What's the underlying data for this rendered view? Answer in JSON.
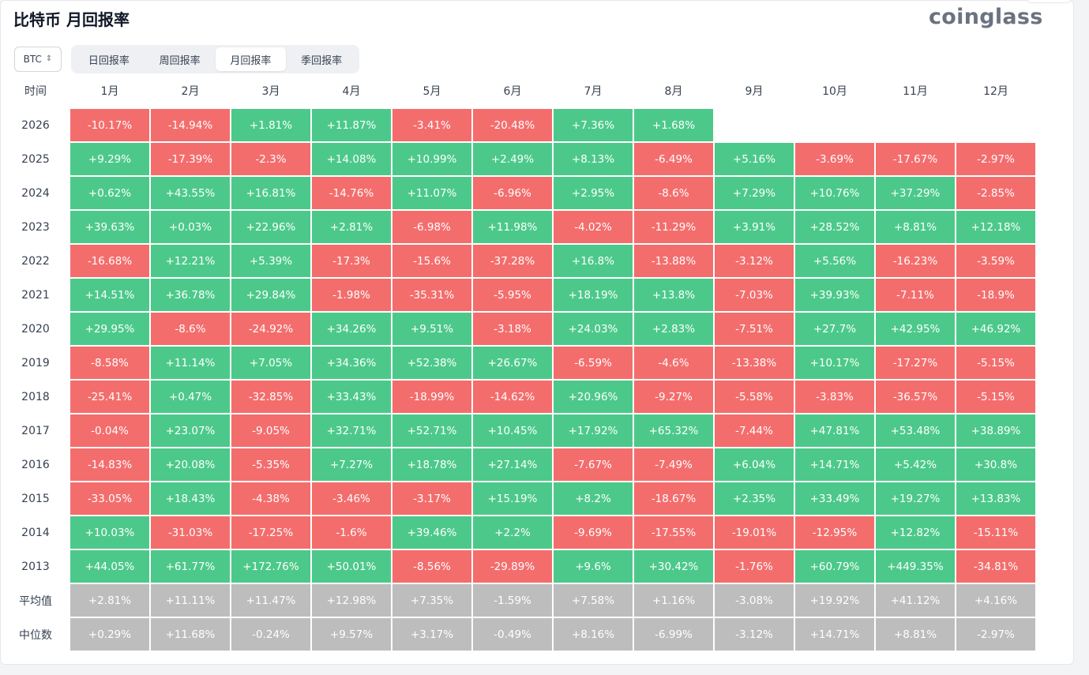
{
  "title": "比特币 月回报率",
  "brand": "coinglass",
  "asset_selector": {
    "value": "BTC",
    "icon": "chevron-updown-icon"
  },
  "tabs": [
    {
      "label": "日回报率",
      "active": false
    },
    {
      "label": "周回报率",
      "active": false
    },
    {
      "label": "月回报率",
      "active": true
    },
    {
      "label": "季回报率",
      "active": false
    }
  ],
  "colors": {
    "positive": "#4cc98a",
    "negative": "#f46d6d",
    "stat": "#bdbdbd"
  },
  "table": {
    "corner_label": "时间",
    "months": [
      "1月",
      "2月",
      "3月",
      "4月",
      "5月",
      "6月",
      "7月",
      "8月",
      "9月",
      "10月",
      "11月",
      "12月"
    ],
    "rows": [
      {
        "year": "2026",
        "values": [
          "-10.17%",
          "-14.94%",
          "+1.81%",
          "+11.87%",
          "-3.41%",
          "-20.48%",
          "+7.36%",
          "+1.68%"
        ]
      },
      {
        "year": "2025",
        "values": [
          "+9.29%",
          "-17.39%",
          "-2.3%",
          "+14.08%",
          "+10.99%",
          "+2.49%",
          "+8.13%",
          "-6.49%",
          "+5.16%",
          "-3.69%",
          "-17.67%",
          "-2.97%"
        ]
      },
      {
        "year": "2024",
        "values": [
          "+0.62%",
          "+43.55%",
          "+16.81%",
          "-14.76%",
          "+11.07%",
          "-6.96%",
          "+2.95%",
          "-8.6%",
          "+7.29%",
          "+10.76%",
          "+37.29%",
          "-2.85%"
        ]
      },
      {
        "year": "2023",
        "values": [
          "+39.63%",
          "+0.03%",
          "+22.96%",
          "+2.81%",
          "-6.98%",
          "+11.98%",
          "-4.02%",
          "-11.29%",
          "+3.91%",
          "+28.52%",
          "+8.81%",
          "+12.18%"
        ]
      },
      {
        "year": "2022",
        "values": [
          "-16.68%",
          "+12.21%",
          "+5.39%",
          "-17.3%",
          "-15.6%",
          "-37.28%",
          "+16.8%",
          "-13.88%",
          "-3.12%",
          "+5.56%",
          "-16.23%",
          "-3.59%"
        ]
      },
      {
        "year": "2021",
        "values": [
          "+14.51%",
          "+36.78%",
          "+29.84%",
          "-1.98%",
          "-35.31%",
          "-5.95%",
          "+18.19%",
          "+13.8%",
          "-7.03%",
          "+39.93%",
          "-7.11%",
          "-18.9%"
        ]
      },
      {
        "year": "2020",
        "values": [
          "+29.95%",
          "-8.6%",
          "-24.92%",
          "+34.26%",
          "+9.51%",
          "-3.18%",
          "+24.03%",
          "+2.83%",
          "-7.51%",
          "+27.7%",
          "+42.95%",
          "+46.92%"
        ]
      },
      {
        "year": "2019",
        "values": [
          "-8.58%",
          "+11.14%",
          "+7.05%",
          "+34.36%",
          "+52.38%",
          "+26.67%",
          "-6.59%",
          "-4.6%",
          "-13.38%",
          "+10.17%",
          "-17.27%",
          "-5.15%"
        ]
      },
      {
        "year": "2018",
        "values": [
          "-25.41%",
          "+0.47%",
          "-32.85%",
          "+33.43%",
          "-18.99%",
          "-14.62%",
          "+20.96%",
          "-9.27%",
          "-5.58%",
          "-3.83%",
          "-36.57%",
          "-5.15%"
        ]
      },
      {
        "year": "2017",
        "values": [
          "-0.04%",
          "+23.07%",
          "-9.05%",
          "+32.71%",
          "+52.71%",
          "+10.45%",
          "+17.92%",
          "+65.32%",
          "-7.44%",
          "+47.81%",
          "+53.48%",
          "+38.89%"
        ]
      },
      {
        "year": "2016",
        "values": [
          "-14.83%",
          "+20.08%",
          "-5.35%",
          "+7.27%",
          "+18.78%",
          "+27.14%",
          "-7.67%",
          "-7.49%",
          "+6.04%",
          "+14.71%",
          "+5.42%",
          "+30.8%"
        ]
      },
      {
        "year": "2015",
        "values": [
          "-33.05%",
          "+18.43%",
          "-4.38%",
          "-3.46%",
          "-3.17%",
          "+15.19%",
          "+8.2%",
          "-18.67%",
          "+2.35%",
          "+33.49%",
          "+19.27%",
          "+13.83%"
        ]
      },
      {
        "year": "2014",
        "values": [
          "+10.03%",
          "-31.03%",
          "-17.25%",
          "-1.6%",
          "+39.46%",
          "+2.2%",
          "-9.69%",
          "-17.55%",
          "-19.01%",
          "-12.95%",
          "+12.82%",
          "-15.11%"
        ]
      },
      {
        "year": "2013",
        "values": [
          "+44.05%",
          "+61.77%",
          "+172.76%",
          "+50.01%",
          "-8.56%",
          "-29.89%",
          "+9.6%",
          "+30.42%",
          "-1.76%",
          "+60.79%",
          "+449.35%",
          "-34.81%"
        ]
      }
    ],
    "stats": [
      {
        "label": "平均值",
        "values": [
          "+2.81%",
          "+11.11%",
          "+11.47%",
          "+12.98%",
          "+7.35%",
          "-1.59%",
          "+7.58%",
          "+1.16%",
          "-3.08%",
          "+19.92%",
          "+41.12%",
          "+4.16%"
        ]
      },
      {
        "label": "中位数",
        "values": [
          "+0.29%",
          "+11.68%",
          "-0.24%",
          "+9.57%",
          "+3.17%",
          "-0.49%",
          "+8.16%",
          "-6.99%",
          "-3.12%",
          "+14.71%",
          "+8.81%",
          "-2.97%"
        ]
      }
    ]
  }
}
